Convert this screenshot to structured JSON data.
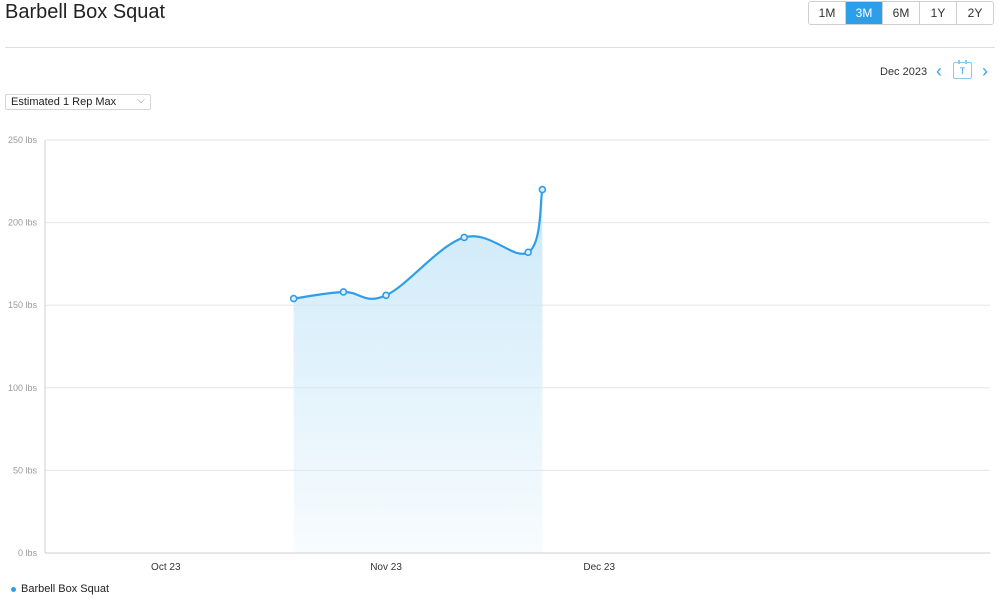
{
  "header": {
    "title": "Barbell Box Squat"
  },
  "range_buttons": [
    {
      "label": "1M",
      "active": false
    },
    {
      "label": "3M",
      "active": true
    },
    {
      "label": "6M",
      "active": false
    },
    {
      "label": "1Y",
      "active": false
    },
    {
      "label": "2Y",
      "active": false
    }
  ],
  "date_nav": {
    "current": "Dec 2023",
    "prev_icon": "chevron-left-icon",
    "next_icon": "chevron-right-icon",
    "calendar_icon": "calendar-icon",
    "calendar_text": "T"
  },
  "metric_select": {
    "value": "Estimated 1 Rep Max"
  },
  "legend": {
    "label": "Barbell Box Squat"
  },
  "colors": {
    "accent": "#2f9ee8",
    "fill": "#cde9f9",
    "grid": "#e6e6e6"
  },
  "chart_data": {
    "type": "area",
    "title": "",
    "xlabel": "",
    "ylabel": "",
    "ylim": [
      0,
      250
    ],
    "y_ticks": [
      {
        "value": 0,
        "label": "0 lbs"
      },
      {
        "value": 50,
        "label": "50 lbs"
      },
      {
        "value": 100,
        "label": "100 lbs"
      },
      {
        "value": 150,
        "label": "150 lbs"
      },
      {
        "value": 200,
        "label": "200 lbs"
      },
      {
        "value": 250,
        "label": "250 lbs"
      }
    ],
    "x_range": [
      "2023-09-14",
      "2024-01-25"
    ],
    "x_ticks": [
      {
        "value": "2023-10-01",
        "label": "Oct 23"
      },
      {
        "value": "2023-11-01",
        "label": "Nov 23"
      },
      {
        "value": "2023-12-01",
        "label": "Dec 23"
      }
    ],
    "grid": true,
    "legend_position": "bottom-left",
    "series": [
      {
        "name": "Barbell Box Squat",
        "points": [
          {
            "x": "2023-10-19",
            "y": 154
          },
          {
            "x": "2023-10-26",
            "y": 158
          },
          {
            "x": "2023-11-01",
            "y": 156
          },
          {
            "x": "2023-11-12",
            "y": 191
          },
          {
            "x": "2023-11-21",
            "y": 182
          },
          {
            "x": "2023-11-23",
            "y": 220
          }
        ]
      }
    ]
  }
}
